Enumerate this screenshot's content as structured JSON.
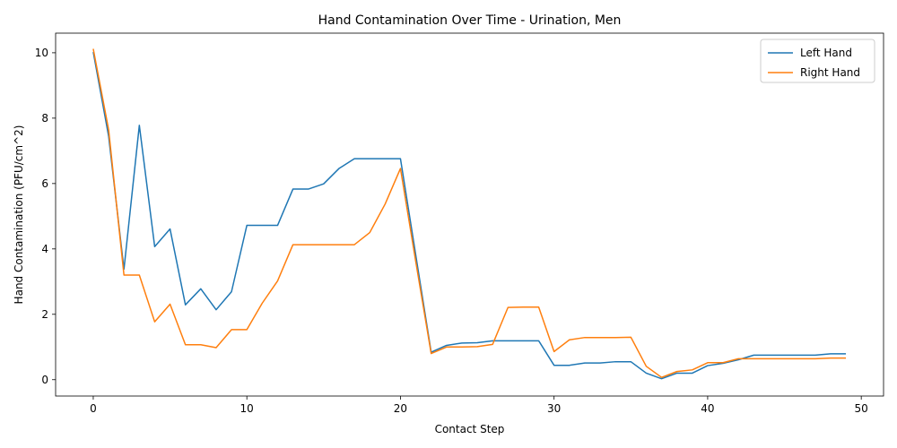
{
  "chart_data": {
    "type": "line",
    "title": "Hand Contamination Over Time - Urination, Men",
    "xlabel": "Contact Step",
    "ylabel": "Hand Contamination (PFU/cm^2)",
    "xlim": [
      -2.45,
      51.45
    ],
    "ylim": [
      -0.5,
      10.6
    ],
    "xticks": [
      0,
      10,
      20,
      30,
      40,
      50
    ],
    "yticks": [
      0,
      2,
      4,
      6,
      8,
      10
    ],
    "grid": false,
    "legend_position": "top-right",
    "x": [
      0,
      1,
      2,
      3,
      4,
      5,
      6,
      7,
      8,
      9,
      10,
      11,
      12,
      13,
      14,
      15,
      16,
      17,
      18,
      19,
      20,
      21,
      22,
      23,
      24,
      25,
      26,
      27,
      28,
      29,
      30,
      31,
      32,
      33,
      34,
      35,
      36,
      37,
      38,
      39,
      40,
      41,
      42,
      43,
      44,
      45,
      46,
      47,
      48,
      49
    ],
    "series": [
      {
        "name": "Left Hand",
        "color": "#1f77b4",
        "values": [
          10.02,
          7.45,
          3.38,
          7.78,
          4.07,
          4.61,
          2.29,
          2.78,
          2.14,
          2.69,
          4.72,
          4.72,
          4.72,
          5.83,
          5.83,
          5.99,
          6.46,
          6.76,
          6.76,
          6.76,
          6.76,
          3.8,
          0.84,
          1.05,
          1.12,
          1.13,
          1.19,
          1.19,
          1.19,
          1.19,
          0.44,
          0.44,
          0.51,
          0.51,
          0.55,
          0.55,
          0.2,
          0.03,
          0.2,
          0.2,
          0.43,
          0.5,
          0.61,
          0.75,
          0.75,
          0.75,
          0.75,
          0.75,
          0.79,
          0.79
        ]
      },
      {
        "name": "Right Hand",
        "color": "#ff7f0e",
        "values": [
          10.12,
          7.65,
          3.2,
          3.2,
          1.77,
          2.31,
          1.07,
          1.07,
          0.98,
          1.53,
          1.53,
          2.34,
          3.02,
          4.13,
          4.13,
          4.13,
          4.13,
          4.13,
          4.5,
          5.37,
          6.46,
          3.6,
          0.8,
          1.0,
          1.0,
          1.01,
          1.08,
          2.21,
          2.22,
          2.22,
          0.86,
          1.22,
          1.29,
          1.29,
          1.29,
          1.3,
          0.41,
          0.07,
          0.25,
          0.3,
          0.52,
          0.52,
          0.64,
          0.64,
          0.64,
          0.64,
          0.64,
          0.64,
          0.66,
          0.66
        ]
      }
    ]
  }
}
